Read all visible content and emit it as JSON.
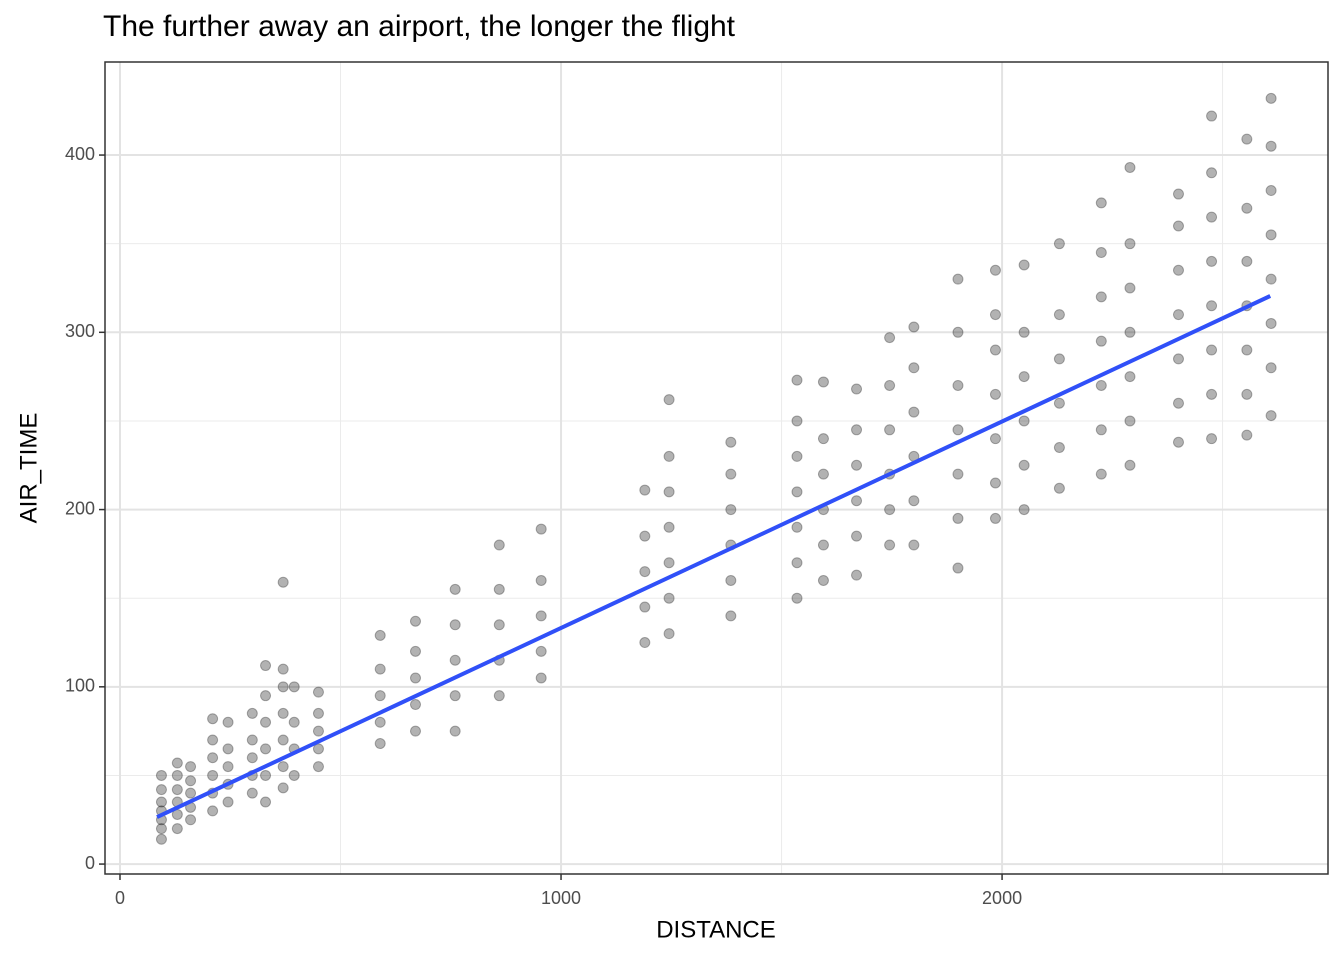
{
  "chart_data": {
    "type": "scatter",
    "title": "The further away an airport, the longer the flight",
    "x_label": "DISTANCE",
    "y_label": "AIR_TIME",
    "xlim": [
      -34,
      2739
    ],
    "ylim": [
      -5.6,
      452.5
    ],
    "xticks": [
      0,
      1000,
      2000
    ],
    "yticks": [
      0,
      100,
      200,
      300,
      400
    ],
    "xminor": [
      500,
      1500,
      2500
    ],
    "yminor": [
      50,
      150,
      250,
      350
    ],
    "grid": true,
    "point_color": "#000000",
    "x": [
      94,
      94,
      94,
      94,
      94,
      94,
      94,
      130,
      130,
      130,
      130,
      130,
      130,
      160,
      160,
      160,
      160,
      160,
      210,
      210,
      210,
      210,
      210,
      210,
      245,
      245,
      245,
      245,
      245,
      300,
      300,
      300,
      300,
      300,
      330,
      330,
      330,
      330,
      330,
      330,
      370,
      370,
      370,
      370,
      370,
      370,
      370,
      395,
      395,
      395,
      395,
      450,
      450,
      450,
      450,
      450,
      590,
      590,
      590,
      590,
      590,
      670,
      670,
      670,
      670,
      670,
      760,
      760,
      760,
      760,
      760,
      860,
      860,
      860,
      860,
      860,
      955,
      955,
      955,
      955,
      955,
      1190,
      1190,
      1190,
      1190,
      1190,
      1245,
      1245,
      1245,
      1245,
      1245,
      1245,
      1245,
      1385,
      1385,
      1385,
      1385,
      1385,
      1385,
      1535,
      1535,
      1535,
      1535,
      1535,
      1535,
      1535,
      1595,
      1595,
      1595,
      1595,
      1595,
      1595,
      1670,
      1670,
      1670,
      1670,
      1670,
      1670,
      1745,
      1745,
      1745,
      1745,
      1745,
      1745,
      1800,
      1800,
      1800,
      1800,
      1800,
      1800,
      1900,
      1900,
      1900,
      1900,
      1900,
      1900,
      1900,
      1985,
      1985,
      1985,
      1985,
      1985,
      1985,
      1985,
      2050,
      2050,
      2050,
      2050,
      2050,
      2050,
      2130,
      2130,
      2130,
      2130,
      2130,
      2130,
      2225,
      2225,
      2225,
      2225,
      2225,
      2225,
      2225,
      2290,
      2290,
      2290,
      2290,
      2290,
      2290,
      2290,
      2400,
      2400,
      2400,
      2400,
      2400,
      2400,
      2400,
      2475,
      2475,
      2475,
      2475,
      2475,
      2475,
      2475,
      2475,
      2555,
      2555,
      2555,
      2555,
      2555,
      2555,
      2555,
      2610,
      2610,
      2610,
      2610,
      2610,
      2610,
      2610,
      2610
    ],
    "y": [
      14,
      20,
      25,
      30,
      35,
      42,
      50,
      20,
      28,
      35,
      42,
      50,
      57,
      25,
      32,
      40,
      47,
      55,
      30,
      40,
      50,
      60,
      70,
      82,
      35,
      45,
      55,
      65,
      80,
      40,
      50,
      60,
      70,
      85,
      35,
      50,
      65,
      80,
      95,
      112,
      43,
      55,
      70,
      85,
      100,
      110,
      159,
      50,
      65,
      80,
      100,
      55,
      65,
      75,
      85,
      97,
      68,
      80,
      95,
      110,
      129,
      75,
      90,
      105,
      120,
      137,
      75,
      95,
      115,
      135,
      155,
      95,
      115,
      135,
      155,
      180,
      105,
      120,
      140,
      160,
      189,
      125,
      145,
      165,
      185,
      211,
      130,
      150,
      170,
      190,
      210,
      230,
      262,
      140,
      160,
      180,
      200,
      220,
      238,
      150,
      170,
      190,
      210,
      230,
      250,
      273,
      160,
      180,
      200,
      220,
      240,
      272,
      163,
      185,
      205,
      225,
      245,
      268,
      180,
      200,
      220,
      245,
      270,
      297,
      180,
      205,
      230,
      255,
      280,
      303,
      167,
      195,
      220,
      245,
      270,
      300,
      330,
      195,
      215,
      240,
      265,
      290,
      310,
      335,
      200,
      225,
      250,
      275,
      300,
      338,
      212,
      235,
      260,
      285,
      310,
      350,
      220,
      245,
      270,
      295,
      320,
      345,
      373,
      225,
      250,
      275,
      300,
      325,
      350,
      393,
      238,
      260,
      285,
      310,
      335,
      360,
      378,
      240,
      265,
      290,
      315,
      340,
      365,
      390,
      422,
      242,
      265,
      290,
      315,
      340,
      370,
      409,
      253,
      280,
      305,
      330,
      355,
      380,
      405,
      432
    ],
    "fit": {
      "color": "#3050f8",
      "x": [
        84,
        2608
      ],
      "y": [
        26.5,
        320.5
      ]
    }
  }
}
